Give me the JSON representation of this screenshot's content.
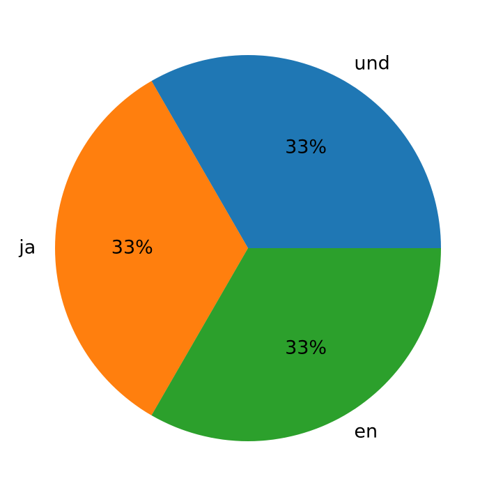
{
  "chart_data": {
    "type": "pie",
    "categories": [
      "und",
      "ja",
      "en"
    ],
    "values": [
      33.33,
      33.33,
      33.33
    ],
    "value_labels": [
      "33%",
      "33%",
      "33%"
    ],
    "colors": [
      "#1f77b4",
      "#ff7f0e",
      "#2ca02c"
    ]
  }
}
